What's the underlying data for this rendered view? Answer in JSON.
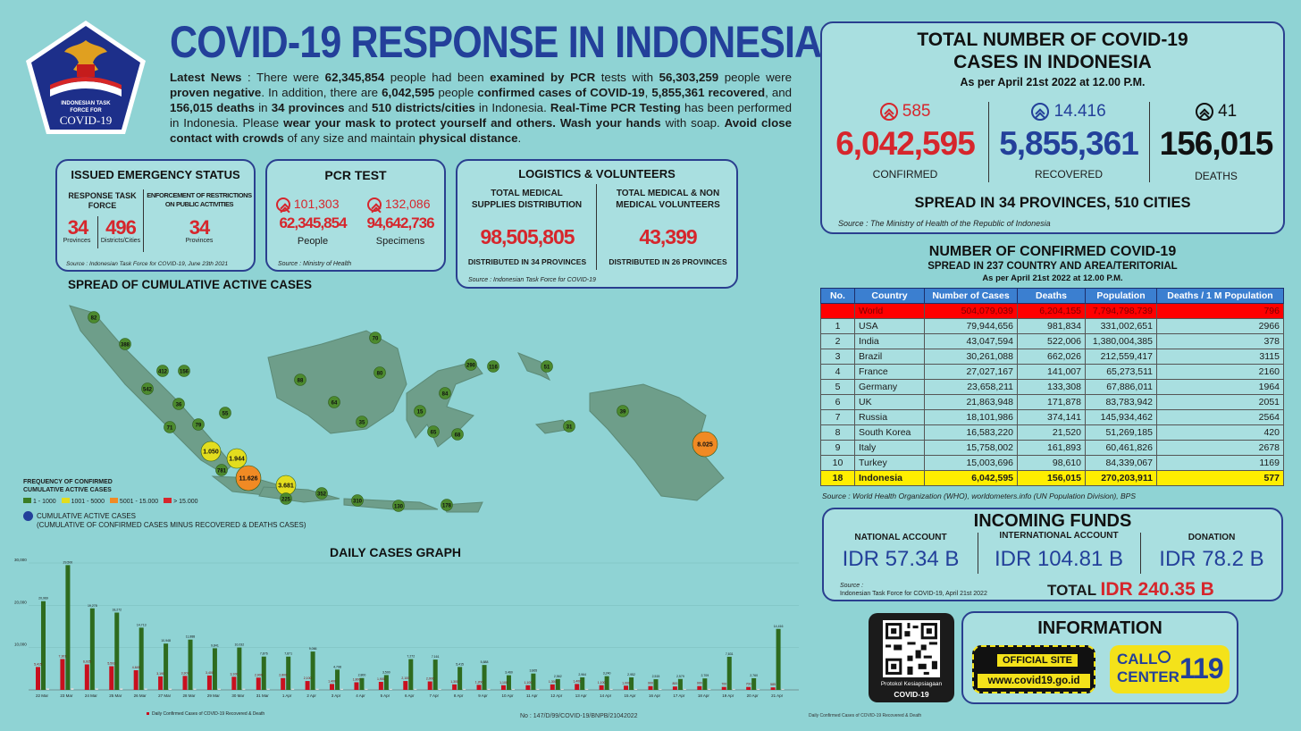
{
  "header": {
    "title": "COVID-19 RESPONSE IN INDONESIA",
    "logo_line1": "INDONESIAN TASK",
    "logo_line2": "FORCE FOR",
    "logo_line3": "COVID-19"
  },
  "news": {
    "p1": "Latest News",
    "p2": " : There were ",
    "p3": "62,345,854",
    "p4": " people had been ",
    "p5": "examined by PCR",
    "p6": " tests with ",
    "p7": "56,303,259",
    "p8": " people were ",
    "p9": "proven negative",
    "p10": ". In addition, there are ",
    "p11": "6,042,595",
    "p12": " people ",
    "p13": "confirmed cases of COVID-19",
    "p14": ", ",
    "p15": "5,855,361 recovered",
    "p16": ", and ",
    "p17": "156,015 deaths",
    "p18": " in ",
    "p19": "34 provinces",
    "p20": " and ",
    "p21": "510 districts/cities",
    "p22": " in Indonesia. ",
    "p23": "Real-Time PCR Testing",
    "p24": " has been performed in Indonesia. Please ",
    "p25": "wear your mask to protect yourself and others. Wash your hands",
    "p26": " with soap. ",
    "p27": "Avoid close contact with crowds",
    "p28": " of any size and maintain ",
    "p29": "physical distance",
    "p30": "."
  },
  "emergency": {
    "title": "ISSUED EMERGENCY STATUS",
    "col1_title": "RESPONSE TASK FORCE",
    "col2_title": "ENFORCEMENT OF RESTRICTIONS ON PUBLIC ACTIVITIES",
    "v1": "34",
    "l1": "Provinces",
    "v2": "496",
    "l2": "Districts/Cities",
    "v3": "34",
    "l3": "Provinces",
    "source": "Source : Indonesian Task Force for COVID-19, June 23th 2021"
  },
  "pcr": {
    "title": "PCR TEST",
    "inc1": "101,303",
    "inc2": "132,086",
    "v1": "62,345,854",
    "v2": "94,642,736",
    "l1": "People",
    "l2": "Specimens",
    "source": "Source : Ministry of Health"
  },
  "logistics": {
    "title": "LOGISTICS & VOLUNTEERS",
    "c1_title": "TOTAL MEDICAL SUPPLIES DISTRIBUTION",
    "c2_title": "TOTAL MEDICAL & NON MEDICAL VOLUNTEERS",
    "v1": "98,505,805",
    "v2": "43,399",
    "l1": "DISTRIBUTED IN 34 PROVINCES",
    "l2": "DISTRIBUTED IN 26 PROVINCES",
    "source": "Source : Indonesian Task Force for COVID-19"
  },
  "map": {
    "title": "SPREAD OF CUMULATIVE ACTIVE CASES",
    "legend_title1": "FREQUENCY OF CONFIRMED",
    "legend_title2": "CUMULATIVE ACTIVE CASES",
    "leg1": "1 - 1000",
    "leg2": "1001 - 5000",
    "leg3": "5001 - 15.000",
    "leg4": "> 15.000",
    "cum_label": "CUMULATIVE ACTIVE CASES",
    "cum_note": "(CUMULATIVE OF CONFIRMED CASES MINUS RECOVERED & DEATHS CASES)",
    "bubbles": [
      "82",
      "388",
      "412",
      "156",
      "542",
      "36",
      "71",
      "79",
      "55",
      "1.050",
      "781",
      "1.944",
      "11.626",
      "3.681",
      "225",
      "352",
      "310",
      "130",
      "178",
      "70",
      "88",
      "80",
      "64",
      "35",
      "290",
      "116",
      "84",
      "15",
      "65",
      "68",
      "51",
      "31",
      "39",
      "8.025"
    ]
  },
  "total": {
    "title1": "TOTAL NUMBER OF COVID-19",
    "title2": "CASES IN INDONESIA",
    "asof": "As per April 21st 2022 at 12.00 P.M.",
    "inc_conf": "585",
    "inc_rec": "14.416",
    "inc_death": "41",
    "confirmed": "6,042,595",
    "recovered": "5,855,361",
    "deaths": "156,015",
    "l_conf": "CONFIRMED",
    "l_rec": "RECOVERED",
    "l_death": "DEATHS",
    "spread": "SPREAD IN 34 PROVINCES, 510 CITIES",
    "source": "Source : The Ministry of Health of the Republic of Indonesia"
  },
  "world": {
    "title": "NUMBER OF CONFIRMED COVID-19",
    "subtitle": "SPREAD IN 237 COUNTRY AND AREA/TERITORIAL",
    "asof": "As per April 21st 2022 at 12.00 P.M.",
    "headers": [
      "No.",
      "Country",
      "Number of Cases",
      "Deaths",
      "Population",
      "Deaths / 1 M Population"
    ],
    "rows": [
      [
        "",
        "World",
        "504,079,039",
        "6,204,155",
        "7,794,798,739",
        "796"
      ],
      [
        "1",
        "USA",
        "79,944,656",
        "981,834",
        "331,002,651",
        "2966"
      ],
      [
        "2",
        "India",
        "43,047,594",
        "522,006",
        "1,380,004,385",
        "378"
      ],
      [
        "3",
        "Brazil",
        "30,261,088",
        "662,026",
        "212,559,417",
        "3115"
      ],
      [
        "4",
        "France",
        "27,027,167",
        "141,007",
        "65,273,511",
        "2160"
      ],
      [
        "5",
        "Germany",
        "23,658,211",
        "133,308",
        "67,886,011",
        "1964"
      ],
      [
        "6",
        "UK",
        "21,863,948",
        "171,878",
        "83,783,942",
        "2051"
      ],
      [
        "7",
        "Russia",
        "18,101,986",
        "374,141",
        "145,934,462",
        "2564"
      ],
      [
        "8",
        "South Korea",
        "16,583,220",
        "21,520",
        "51,269,185",
        "420"
      ],
      [
        "9",
        "Italy",
        "15,758,002",
        "161,893",
        "60,461,826",
        "2678"
      ],
      [
        "10",
        "Turkey",
        "15,003,696",
        "98,610",
        "84,339,067",
        "1169"
      ],
      [
        "18",
        "Indonesia",
        "6,042,595",
        "156,015",
        "270,203,911",
        "577"
      ]
    ],
    "source": "Source : World Health Organization (WHO), worldometers.info (UN Population Division), BPS"
  },
  "funds": {
    "title": "INCOMING FUNDS",
    "h1": "NATIONAL ACCOUNT",
    "h2": "INTERNATIONAL ACCOUNT",
    "h3": "DONATION",
    "v1": "IDR 57.34 B",
    "v2": "IDR 104.81 B",
    "v3": "IDR 78.2 B",
    "source1": "Source :",
    "source2": "Indonesian Task Force for COVID-19, April 21st 2022",
    "total_label": "TOTAL",
    "total_value": "IDR 240.35 B"
  },
  "info": {
    "qr_label1": "Protokol Kesiapsiagaan",
    "qr_label2": "COVID-19",
    "title": "INFORMATION",
    "site_label": "OFFICIAL SITE",
    "site_url": "www.covid19.go.id",
    "call1": "CALL",
    "call2": "CENTER",
    "call_num": "119"
  },
  "graph": {
    "title": "DAILY CASES GRAPH",
    "legend": "Daily Confirmed Cases of COVID-19 Recovered & Death",
    "footnote": "No : 147/D/99/COVID-19/BNPB/21042022",
    "right_note": "Daily Confirmed Cases of COVID-19 Recovered & Death"
  },
  "chart_data": {
    "type": "bar",
    "title": "DAILY CASES GRAPH",
    "ylim": [
      0,
      30000
    ],
    "ytick_labels": [
      "30,000",
      "20,000",
      "10,000"
    ],
    "categories": [
      "22 Mar",
      "23 Mar",
      "24 Mar",
      "25 Mar",
      "26 Mar",
      "27 Mar",
      "28 Mar",
      "29 Mar",
      "30 Mar",
      "31 Mar",
      "1 Apr",
      "2 Apr",
      "3 Apr",
      "4 Apr",
      "5 Apr",
      "6 Apr",
      "7 Apr",
      "8 Apr",
      "9 Apr",
      "10 Apr",
      "11 Apr",
      "12 Apr",
      "13 Apr",
      "14 Apr",
      "15 Apr",
      "16 Apr",
      "17 Apr",
      "18 Apr",
      "19 Apr",
      "20 Apr",
      "21 Apr"
    ],
    "series": [
      {
        "name": "Confirmed",
        "color": "#c8101e",
        "values": [
          5415,
          7301,
          6025,
          5593,
          4645,
          3190,
          3307,
          3400,
          3100,
          2900,
          2800,
          2100,
          1400,
          1800,
          1900,
          2100,
          2000,
          1300,
          1200,
          1100,
          1100,
          1300,
          1400,
          1100,
          1000,
          900,
          800,
          900,
          700,
          700,
          585
        ]
      },
      {
        "name": "Recovered",
        "color": "#2e6b1e",
        "values": [
          20969,
          29500,
          19278,
          18272,
          14713,
          10948,
          11888,
          9841,
          10032,
          7876,
          7871,
          9066,
          4798,
          2800,
          3500,
          7272,
          7161,
          5415,
          5888,
          3460,
          3865,
          2562,
          2964,
          3240,
          2952,
          2515,
          2579,
          2709,
          7831,
          2760,
          14416
        ]
      },
      {
        "name": "Deaths",
        "color": "#e8e8e8",
        "values": [
          150,
          190,
          160,
          150,
          130,
          110,
          100,
          95,
          90,
          85,
          80,
          70,
          60,
          55,
          55,
          50,
          50,
          45,
          45,
          40,
          40,
          40,
          38,
          36,
          34,
          30,
          28,
          45,
          30,
          29,
          41
        ]
      }
    ],
    "label_conf": [
      "5,415",
      "7,301",
      "6,025",
      "5,593",
      "4,645",
      "3,190",
      "3,307",
      "3,400",
      "3,100",
      "2,900",
      "2,800",
      "2,100",
      "1,400",
      "1,800",
      "1,900",
      "2,100",
      "2,000",
      "1,300",
      "1,200",
      "1,100",
      "1,100",
      "1,300",
      "1,400",
      "1,100",
      "1,000",
      "900",
      "800",
      "900",
      "700",
      "700",
      "585"
    ],
    "label_rec": [
      "20,969",
      "29,500",
      "19,278",
      "18,272",
      "14,713",
      "10,948",
      "11,888",
      "9,841",
      "10,032",
      "7,876",
      "7,871",
      "9,066",
      "4,798",
      "2,800",
      "3,500",
      "7,272",
      "7,161",
      "5,415",
      "5,888",
      "3,460",
      "3,865",
      "2,562",
      "2,964",
      "3,240",
      "2,952",
      "2,515",
      "2,579",
      "2,709",
      "7,831",
      "2,760",
      "14,416"
    ]
  }
}
